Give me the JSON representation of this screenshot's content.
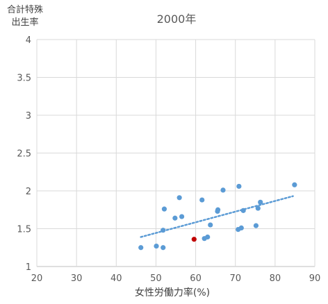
{
  "chart_data": {
    "type": "scatter",
    "title": "2000年",
    "xlabel": "女性労働力率(%)",
    "ylabel": "合計特殊出生率",
    "ylabel_lines": [
      "合計特殊",
      "出生率"
    ],
    "xlim": [
      20,
      90
    ],
    "ylim": [
      1,
      4
    ],
    "x_ticks": [
      "20",
      "30",
      "40",
      "50",
      "60",
      "70",
      "80",
      "90"
    ],
    "y_ticks": [
      "1",
      "1.5",
      "2",
      "2.5",
      "3",
      "3.5",
      "4"
    ],
    "grid": true,
    "trendline": {
      "type": "linear",
      "style": "dotted",
      "color": "#5b9bd5",
      "x_range": [
        46.2,
        84.5
      ],
      "y_values": [
        1.39,
        1.93
      ]
    },
    "series": [
      {
        "color": "#5b9bd5",
        "points": [
          [
            46.2,
            1.25
          ],
          [
            50.1,
            1.27
          ],
          [
            51.8,
            1.25
          ],
          [
            51.8,
            1.48
          ],
          [
            52.1,
            1.76
          ],
          [
            54.8,
            1.64
          ],
          [
            55.9,
            1.91
          ],
          [
            56.5,
            1.66
          ],
          [
            61.6,
            1.88
          ],
          [
            62.2,
            1.37
          ],
          [
            63.0,
            1.39
          ],
          [
            63.7,
            1.55
          ],
          [
            65.5,
            1.73
          ],
          [
            65.6,
            1.75
          ],
          [
            66.9,
            2.01
          ],
          [
            70.7,
            1.49
          ],
          [
            70.9,
            2.06
          ],
          [
            71.5,
            1.51
          ],
          [
            72.0,
            1.74
          ],
          [
            75.2,
            1.54
          ],
          [
            75.7,
            1.77
          ],
          [
            76.3,
            1.85
          ],
          [
            84.9,
            2.08
          ]
        ]
      },
      {
        "color": "#c00000",
        "points": [
          [
            59.6,
            1.36
          ]
        ]
      }
    ]
  }
}
